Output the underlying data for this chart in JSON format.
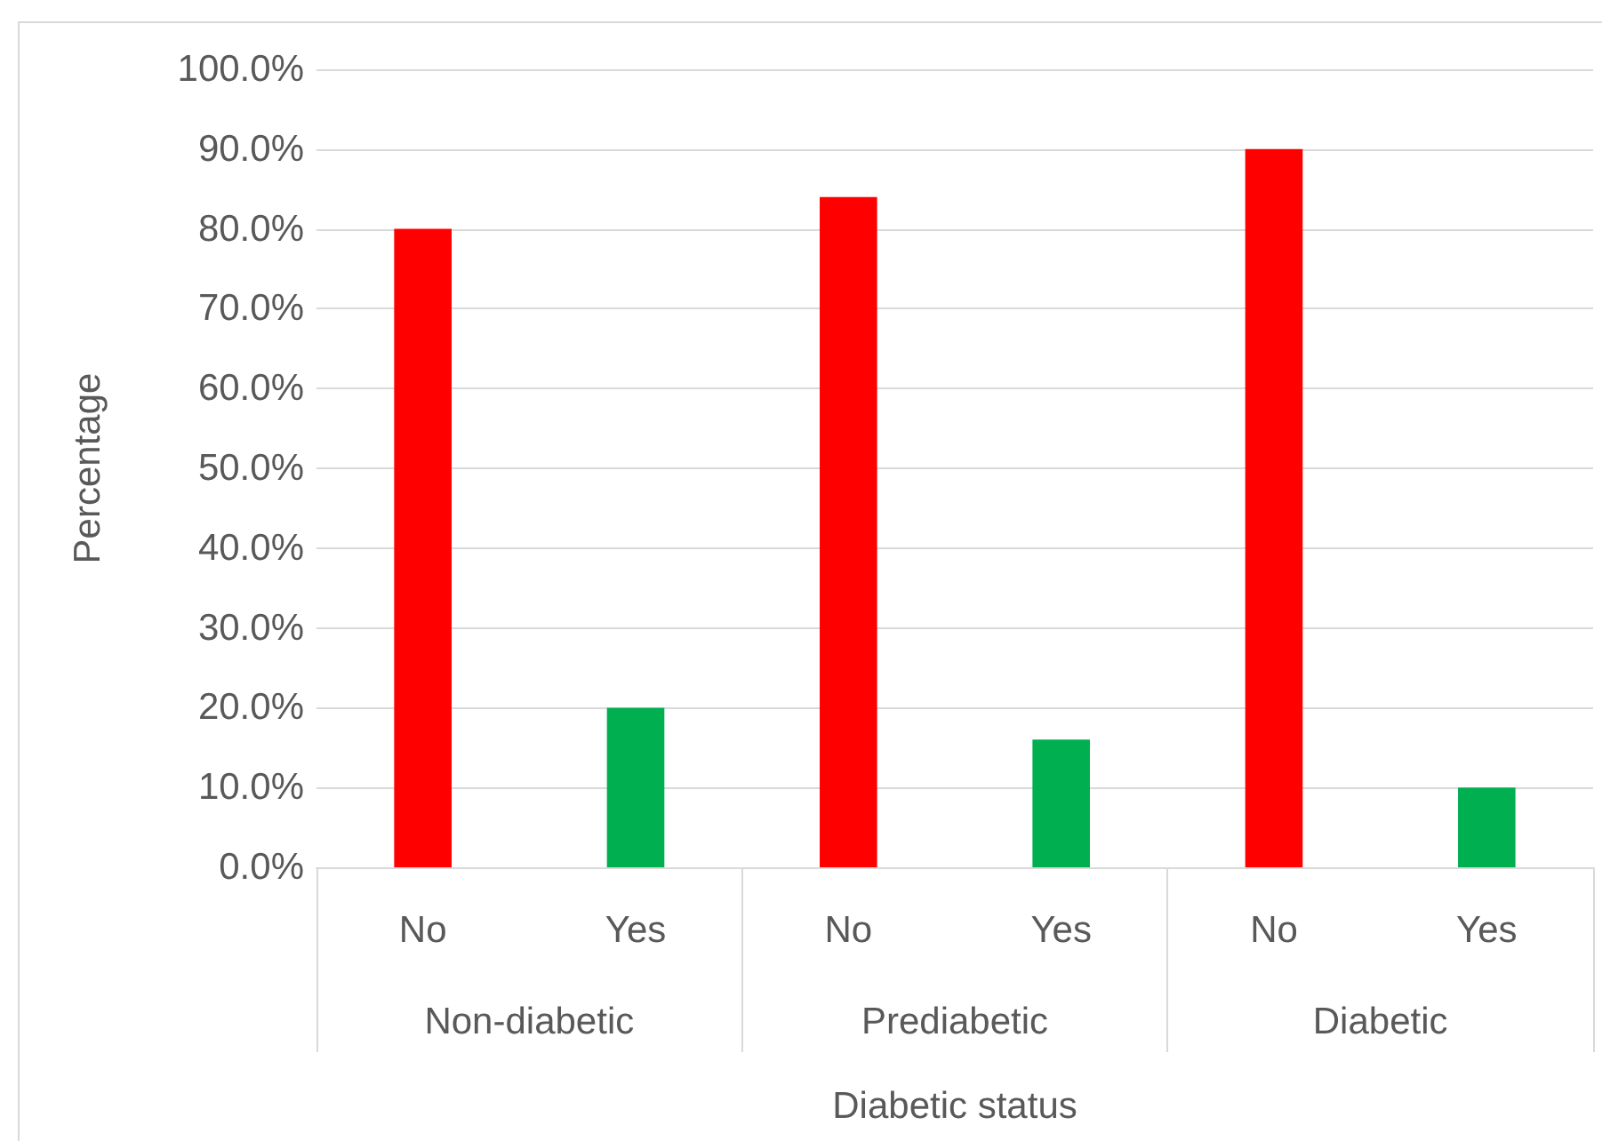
{
  "chart_data": {
    "type": "bar",
    "xlabel": "Diabetic status",
    "ylabel": "Percentage",
    "categories": [
      "No",
      "Yes",
      "No",
      "Yes",
      "No",
      "Yes"
    ],
    "values": [
      80,
      20,
      84,
      16,
      90,
      10
    ],
    "colors": [
      "#ff0000",
      "#00b050",
      "#ff0000",
      "#00b050",
      "#ff0000",
      "#00b050"
    ],
    "annotations": [
      "Non-diabetic",
      "Prediabetic",
      "Diabetic"
    ],
    "ylim": [
      0,
      100
    ],
    "yticks": [
      {
        "value": 0,
        "label": "0.0%"
      },
      {
        "value": 10,
        "label": "10.0%"
      },
      {
        "value": 20,
        "label": "20.0%"
      },
      {
        "value": 30,
        "label": "30.0%"
      },
      {
        "value": 40,
        "label": "40.0%"
      },
      {
        "value": 50,
        "label": "50.0%"
      },
      {
        "value": 60,
        "label": "60.0%"
      },
      {
        "value": 70,
        "label": "70.0%"
      },
      {
        "value": 80,
        "label": "80.0%"
      },
      {
        "value": 90,
        "label": "90.0%"
      },
      {
        "value": 100,
        "label": "100.0%"
      }
    ],
    "grid": "y"
  }
}
